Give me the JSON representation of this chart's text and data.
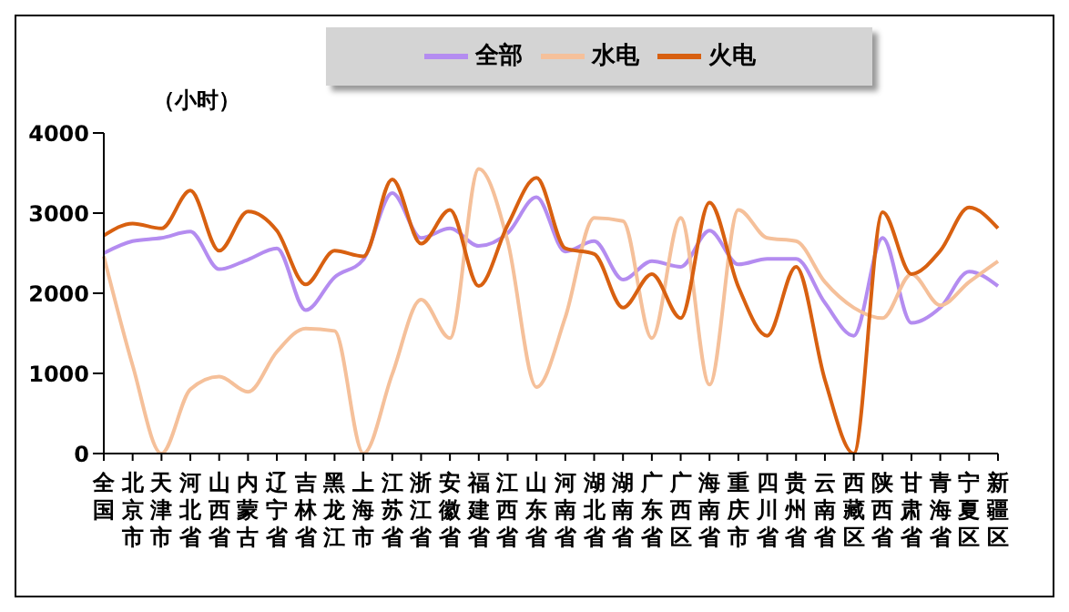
{
  "chart_data": {
    "type": "line",
    "categories": [
      "全国",
      "北京市",
      "天津市",
      "河北省",
      "山西省",
      "内蒙古",
      "辽宁省",
      "吉林省",
      "黑龙江",
      "上海市",
      "江苏省",
      "浙江省",
      "安徽省",
      "福建省",
      "江西省",
      "山东省",
      "河南省",
      "湖北省",
      "湖南省",
      "广东省",
      "广西区",
      "海南省",
      "重庆市",
      "四川省",
      "贵州省",
      "云南省",
      "西藏区",
      "陕西省",
      "甘肃省",
      "青海省",
      "宁夏区",
      "新疆区"
    ],
    "series": [
      {
        "name": "全部",
        "color": "#b48cf0",
        "values": [
          2500,
          2650,
          2690,
          2770,
          2300,
          2420,
          2560,
          1790,
          2200,
          2420,
          3250,
          2690,
          2810,
          2590,
          2750,
          3200,
          2520,
          2650,
          2170,
          2400,
          2330,
          2780,
          2360,
          2430,
          2430,
          1880,
          1470,
          2690,
          1630,
          1820,
          2270,
          2090
        ]
      },
      {
        "name": "水电",
        "color": "#f5c09a",
        "values": [
          2460,
          1100,
          0,
          800,
          960,
          770,
          1270,
          1560,
          1530,
          0,
          990,
          1920,
          1440,
          3550,
          2650,
          830,
          1700,
          2940,
          2900,
          1440,
          2940,
          860,
          3040,
          2690,
          2650,
          2140,
          1820,
          1690,
          2240,
          1850,
          2140,
          2400
        ]
      },
      {
        "name": "火电",
        "color": "#d86010",
        "values": [
          2720,
          2870,
          2810,
          3280,
          2530,
          3020,
          2780,
          2110,
          2530,
          2460,
          3420,
          2620,
          3040,
          2090,
          2850,
          3440,
          2560,
          2490,
          1820,
          2240,
          1690,
          3130,
          2080,
          1470,
          2330,
          920,
          0,
          3010,
          2240,
          2530,
          3070,
          2810
        ]
      }
    ],
    "ylim": [
      0,
      4000
    ],
    "yticks": [
      0,
      1000,
      2000,
      3000,
      4000
    ],
    "annotations": [
      "（小时）"
    ],
    "legend": "top",
    "grid": false,
    "marker": "none",
    "line_style": "solid"
  }
}
